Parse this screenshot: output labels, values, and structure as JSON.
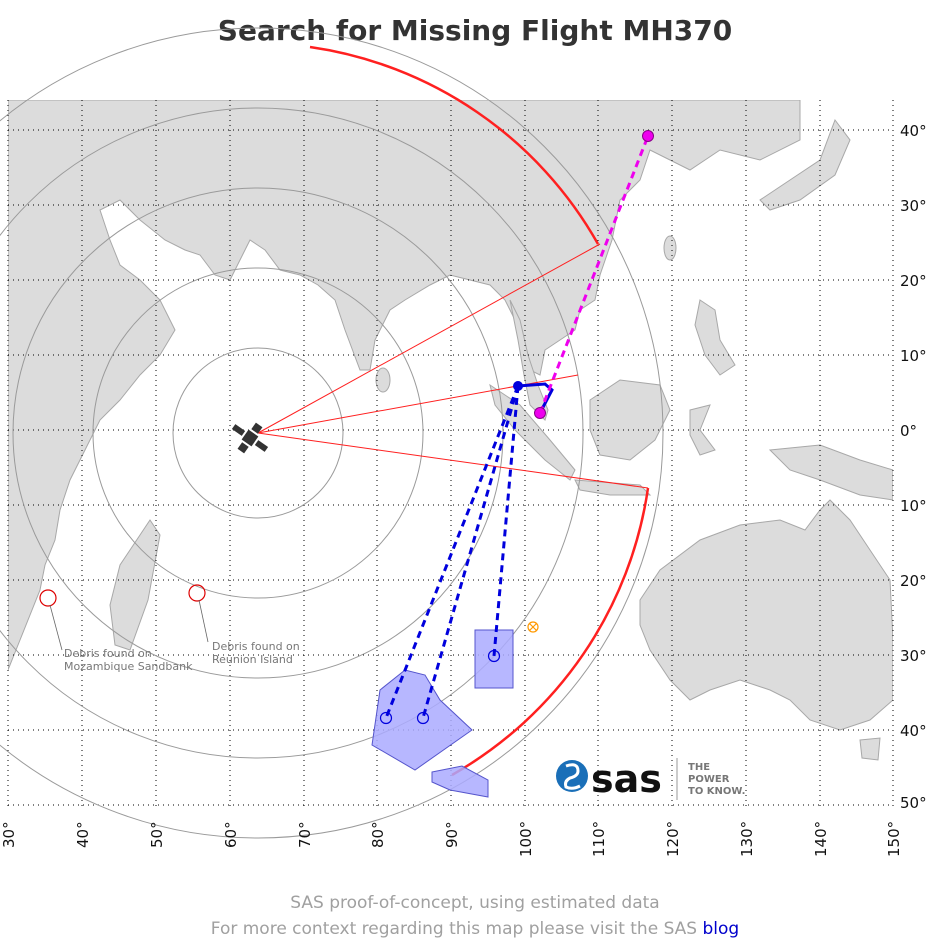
{
  "title": "Search for Missing Flight MH370",
  "footer": {
    "line1": "SAS proof-of-concept, using estimated data",
    "line2_prefix": "For more context regarding this map please visit the SAS",
    "line2_link": "blog"
  },
  "logo": {
    "brand": "sas",
    "tagline": [
      "THE",
      "POWER",
      "TO KNOW."
    ]
  },
  "axes": {
    "lon_ticks": [
      "30°",
      "40°",
      "50°",
      "60°",
      "70°",
      "80°",
      "90°",
      "100°",
      "110°",
      "120°",
      "130°",
      "140°",
      "150°"
    ],
    "lat_ticks": [
      "40°",
      "30°",
      "20°",
      "10°",
      "0°",
      "10°",
      "20°",
      "30°",
      "40°",
      "50°"
    ]
  },
  "annotations": {
    "debris_mozambique": [
      "Debris found on",
      "Mozambique Sandbank"
    ],
    "debris_reunion": [
      "Debris found on",
      "Reunion Island"
    ]
  },
  "colors": {
    "land": "#dcdcdc",
    "coast": "#a8a8a8",
    "arc": "#ff2020",
    "flight_known": "#0000dd",
    "flight_planned": "#ee00ee",
    "search_area": "#9999ff",
    "marker_orange": "#ff9900"
  },
  "icons": {
    "satellite": "satellite-icon",
    "debris": "circle-marker-icon"
  }
}
